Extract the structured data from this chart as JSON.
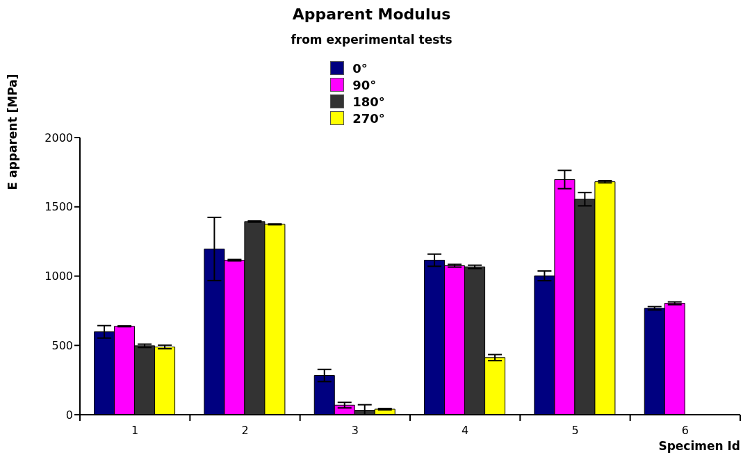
{
  "chart_data": {
    "type": "bar",
    "title": "Apparent Modulus",
    "subtitle": "from experimental tests",
    "xlabel": "Specimen Id",
    "ylabel": "E apparent [MPa]",
    "categories": [
      "1",
      "2",
      "3",
      "4",
      "5",
      "6"
    ],
    "series": [
      {
        "name": "0°",
        "color": "#000080",
        "values": [
          598,
          1196,
          283,
          1115,
          1002,
          768
        ],
        "errors": [
          45,
          228,
          44,
          44,
          35,
          12
        ]
      },
      {
        "name": "90°",
        "color": "#ff00ff",
        "values": [
          638,
          1115,
          69,
          1075,
          1697,
          804
        ],
        "errors": [
          3,
          5,
          20,
          10,
          66,
          10
        ]
      },
      {
        "name": "180°",
        "color": "#333333",
        "values": [
          497,
          1394,
          32,
          1067,
          1555,
          null
        ],
        "errors": [
          12,
          4,
          [
            0,
            72
          ],
          12,
          48,
          null
        ]
      },
      {
        "name": "270°",
        "color": "#ffff00",
        "values": [
          489,
          1374,
          40,
          412,
          1681,
          null
        ],
        "errors": [
          13,
          3,
          5,
          22,
          8,
          null
        ]
      }
    ],
    "ylim": [
      0,
      2000
    ],
    "yticks": [
      0,
      500,
      1000,
      1500,
      2000
    ],
    "grid": false,
    "legend": "top"
  }
}
